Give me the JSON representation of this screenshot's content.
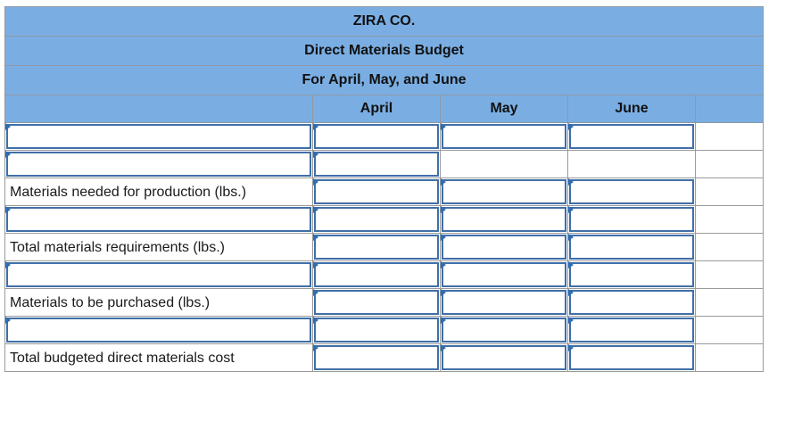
{
  "header": {
    "company": "ZIRA CO.",
    "title": "Direct Materials Budget",
    "period": "For April, May, and June"
  },
  "columns": [
    "April",
    "May",
    "June"
  ],
  "rows": [
    {
      "label": "",
      "editable_label": true,
      "inputs": [
        true,
        true,
        true
      ]
    },
    {
      "label": "",
      "editable_label": true,
      "inputs": [
        true,
        false,
        false
      ]
    },
    {
      "label": "Materials needed for production (lbs.)",
      "editable_label": false,
      "inputs": [
        true,
        true,
        true
      ]
    },
    {
      "label": "",
      "editable_label": true,
      "inputs": [
        true,
        true,
        true
      ]
    },
    {
      "label": "Total materials requirements (lbs.)",
      "editable_label": false,
      "inputs": [
        true,
        true,
        true
      ]
    },
    {
      "label": "",
      "editable_label": true,
      "inputs": [
        true,
        true,
        true
      ]
    },
    {
      "label": "Materials to be purchased (lbs.)",
      "editable_label": false,
      "inputs": [
        true,
        true,
        true
      ]
    },
    {
      "label": "",
      "editable_label": true,
      "inputs": [
        true,
        true,
        true
      ]
    },
    {
      "label": "Total budgeted direct materials cost",
      "editable_label": false,
      "inputs": [
        true,
        true,
        true
      ]
    }
  ],
  "colors": {
    "header_bg": "#7aaee3",
    "input_border": "#3f6fa8",
    "marker": "#2e6db4"
  }
}
